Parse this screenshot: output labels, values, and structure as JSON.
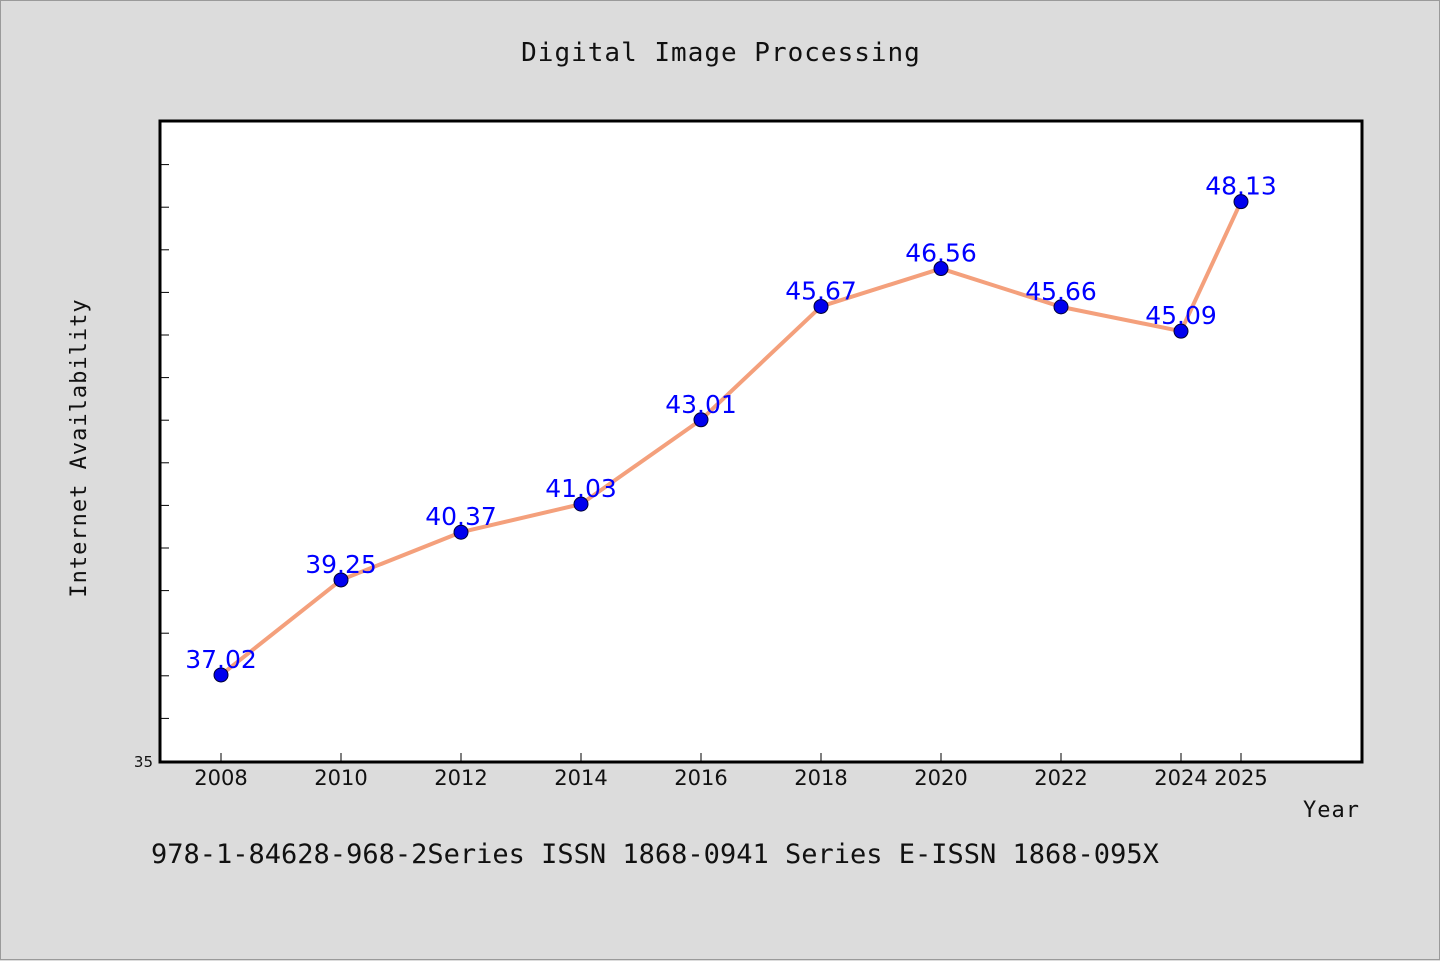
{
  "chart_data": {
    "type": "line",
    "title": "Digital Image Processing",
    "xlabel": "Year",
    "ylabel": "Internet Availability",
    "x": [
      "2008",
      "2010",
      "2012",
      "2014",
      "2016",
      "2018",
      "2020",
      "2022",
      "2024",
      "2025"
    ],
    "y_tick_labels": [
      "35"
    ],
    "series": [
      {
        "values": [
          37.02,
          39.25,
          40.37,
          41.03,
          43.01,
          45.67,
          46.56,
          45.66,
          45.09,
          48.13
        ],
        "data_labels": [
          "37.02",
          "39.25",
          "40.37",
          "41.03",
          "43.01",
          "45.67",
          "46.56",
          "45.66",
          "45.09",
          "48.13"
        ]
      }
    ],
    "ylim": [
      35,
      50
    ],
    "y_minor_step": 1,
    "grid": false,
    "legend": false,
    "colors": {
      "line": "#f4a07c",
      "marker": "#0000ee",
      "data_label": "#0000ff"
    }
  },
  "footer": {
    "text": "978-1-84628-968-2Series ISSN 1868-0941 Series E-ISSN 1868-095X"
  }
}
